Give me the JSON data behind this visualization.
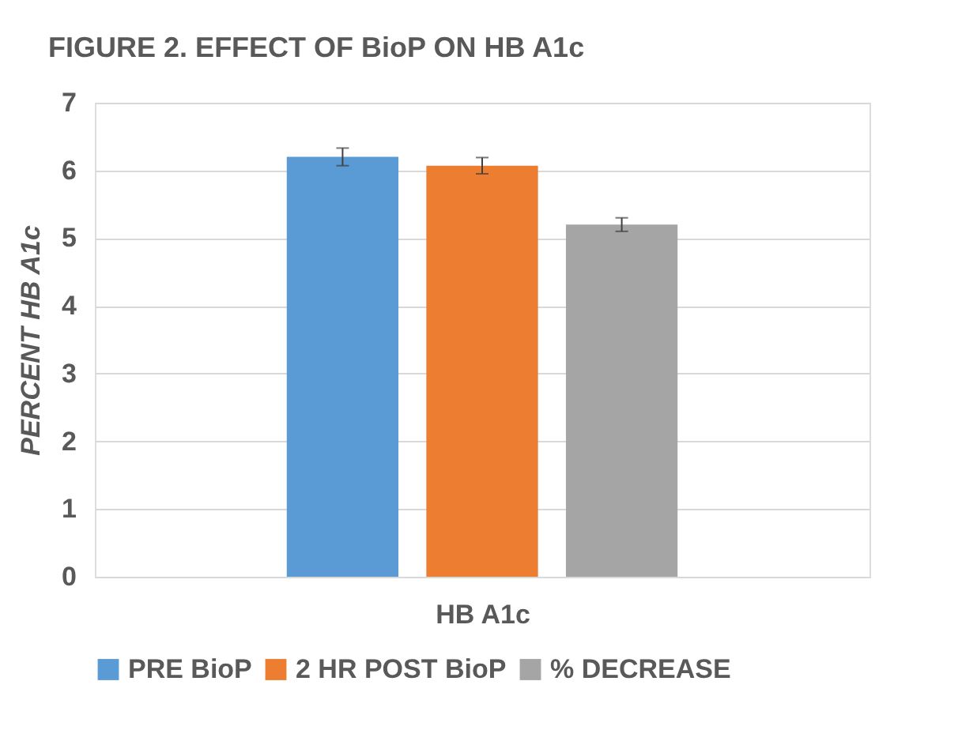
{
  "chart_data": {
    "type": "bar",
    "title": "FIGURE 2. EFFECT OF BioP ON HB A1c",
    "xlabel": "HB A1c",
    "ylabel": "PERCENT HB A1c",
    "categories": [
      null
    ],
    "series": [
      {
        "name": "PRE BioP",
        "color": "#5b9bd5",
        "values": [
          6.2
        ],
        "errors": [
          0.13
        ]
      },
      {
        "name": "2 HR POST BioP",
        "color": "#ed7d31",
        "values": [
          6.07
        ],
        "errors": [
          0.12
        ]
      },
      {
        "name": "% DECREASE",
        "color": "#a5a5a5",
        "values": [
          5.2
        ],
        "errors": [
          0.1
        ]
      }
    ],
    "ylim": [
      0,
      7
    ],
    "yticks": [
      0,
      1,
      2,
      3,
      4,
      5,
      6,
      7
    ],
    "grid": "y",
    "legend": "bottom"
  }
}
